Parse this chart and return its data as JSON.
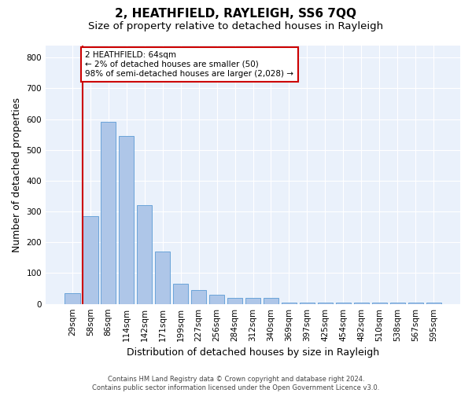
{
  "title": "2, HEATHFIELD, RAYLEIGH, SS6 7QQ",
  "subtitle": "Size of property relative to detached houses in Rayleigh",
  "xlabel": "Distribution of detached houses by size in Rayleigh",
  "ylabel": "Number of detached properties",
  "footer_line1": "Contains HM Land Registry data © Crown copyright and database right 2024.",
  "footer_line2": "Contains public sector information licensed under the Open Government Licence v3.0.",
  "bar_labels": [
    "29sqm",
    "58sqm",
    "86sqm",
    "114sqm",
    "142sqm",
    "171sqm",
    "199sqm",
    "227sqm",
    "256sqm",
    "284sqm",
    "312sqm",
    "340sqm",
    "369sqm",
    "397sqm",
    "425sqm",
    "454sqm",
    "482sqm",
    "510sqm",
    "538sqm",
    "567sqm",
    "595sqm"
  ],
  "bar_values": [
    35,
    285,
    590,
    545,
    320,
    170,
    65,
    45,
    30,
    20,
    20,
    20,
    5,
    5,
    5,
    5,
    5,
    5,
    5,
    5,
    5
  ],
  "bar_color": "#aec6e8",
  "bar_edge_color": "#5b9bd5",
  "highlight_bar_index": 1,
  "highlight_color": "#cc0000",
  "ylim": [
    0,
    840
  ],
  "yticks": [
    0,
    100,
    200,
    300,
    400,
    500,
    600,
    700,
    800
  ],
  "annotation_text": "2 HEATHFIELD: 64sqm\n← 2% of detached houses are smaller (50)\n98% of semi-detached houses are larger (2,028) →",
  "annotation_box_color": "#ffffff",
  "annotation_border_color": "#cc0000",
  "bg_color": "#eaf1fb",
  "grid_color": "#ffffff",
  "title_fontsize": 11,
  "subtitle_fontsize": 9.5,
  "tick_fontsize": 7.5,
  "label_fontsize": 9,
  "annotation_fontsize": 7.5,
  "footer_fontsize": 6
}
